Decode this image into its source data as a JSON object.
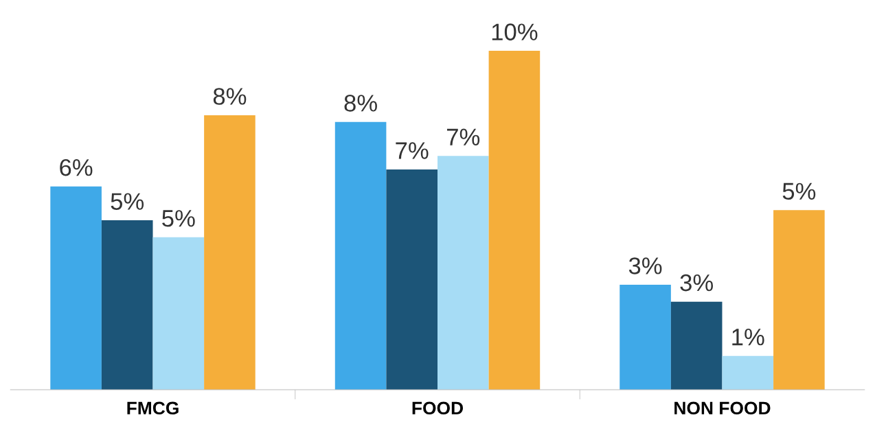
{
  "chart_data": {
    "type": "bar",
    "categories": [
      "FMCG",
      "FOOD",
      "NON FOOD"
    ],
    "series": [
      {
        "color": "#3fa9e8",
        "values": [
          6.0,
          7.9,
          3.1
        ],
        "value_labels": [
          "6%",
          "8%",
          "3%"
        ]
      },
      {
        "color": "#1c5578",
        "values": [
          5.0,
          6.5,
          2.6
        ],
        "value_labels": [
          "5%",
          "7%",
          "3%"
        ]
      },
      {
        "color": "#a6dcf5",
        "values": [
          4.5,
          6.9,
          1.0
        ],
        "value_labels": [
          "5%",
          "7%",
          "1%"
        ]
      },
      {
        "color": "#f5ae3a",
        "values": [
          8.1,
          10.0,
          5.3
        ],
        "value_labels": [
          "8%",
          "10%",
          "5%"
        ]
      }
    ],
    "tick_labels": "x",
    "grid": false,
    "legend": false
  }
}
